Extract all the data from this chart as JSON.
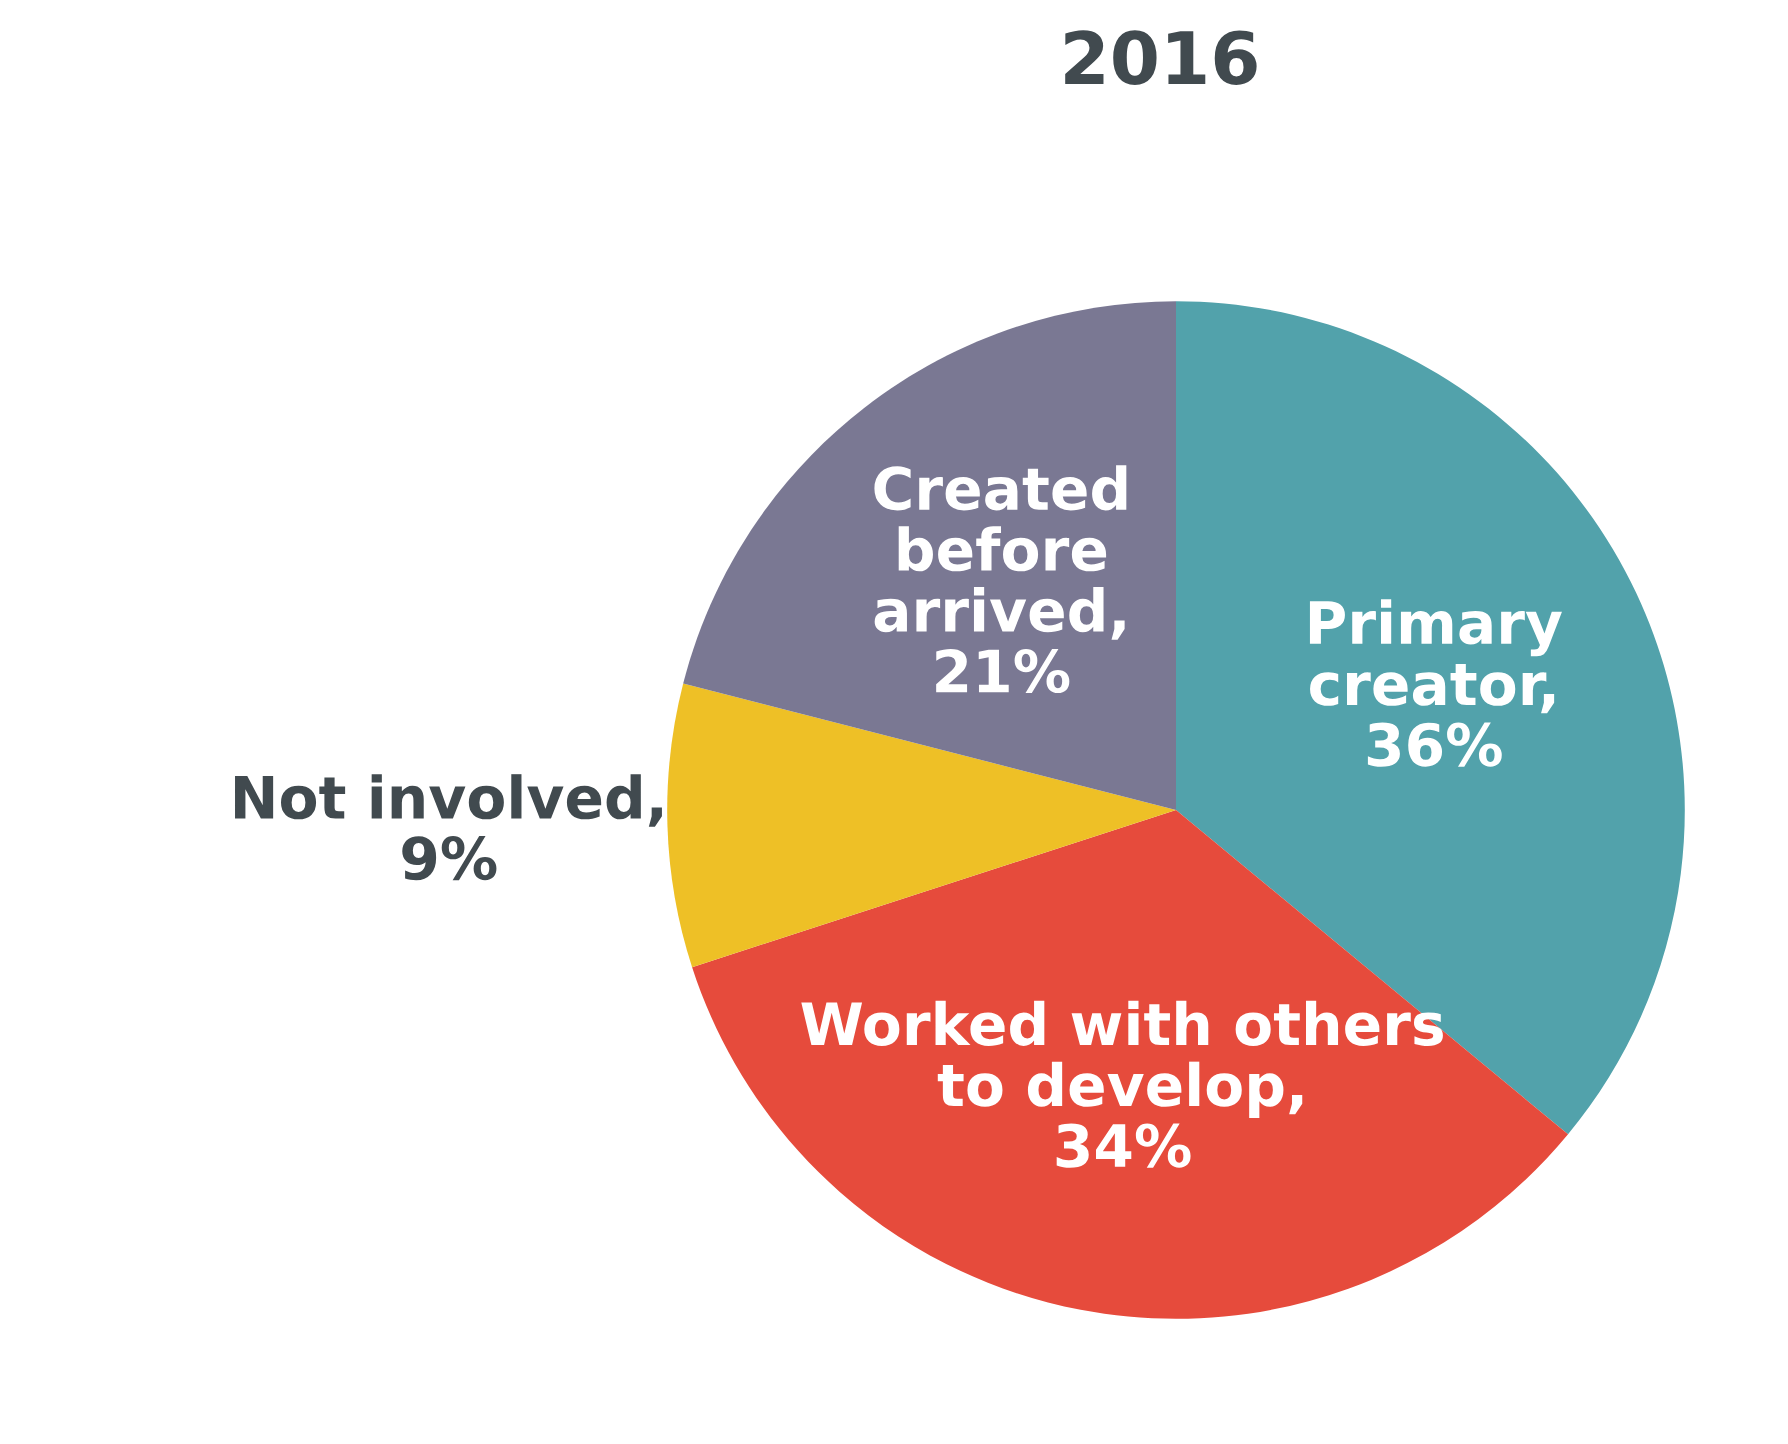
{
  "chart_data": {
    "type": "pie",
    "title": "2016",
    "categories": [
      "Primary\ncreator,\n36%",
      "Worked with others\nto develop,\n34%",
      "Not involved,\n9%",
      "Created\nbefore\narrived,\n21%"
    ],
    "values": [
      36,
      34,
      9,
      21
    ],
    "colors": [
      "#52a2ab",
      "#e64b3c",
      "#eec026",
      "#7a7893"
    ]
  }
}
